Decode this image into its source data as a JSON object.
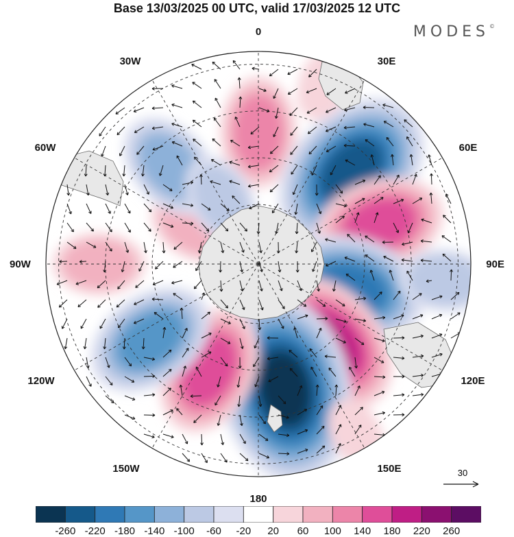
{
  "title": "Base 13/03/2025 00 UTC, valid 17/03/2025 12 UTC",
  "brand": "MODES",
  "brand_mark": "©",
  "longitude_labels": {
    "n0": "0",
    "n30e": "30E",
    "n60e": "60E",
    "n90e": "90E",
    "n120e": "120E",
    "n150e": "150E",
    "n180": "180",
    "n150w": "150W",
    "n120w": "120W",
    "n90w": "90W",
    "n60w": "60W",
    "n30w": "30W"
  },
  "vector_scale": {
    "label": "30"
  },
  "colorbar": {
    "labels": [
      "-260",
      "-220",
      "-180",
      "-140",
      "-100",
      "-60",
      "-20",
      "20",
      "60",
      "100",
      "140",
      "180",
      "220",
      "260"
    ],
    "colors": [
      "#0b3452",
      "#15598a",
      "#2f79b5",
      "#5596c8",
      "#8db1d9",
      "#bcc9e4",
      "#dcdff0",
      "#ffffff",
      "#f7d5db",
      "#f2b1c0",
      "#ec85a9",
      "#df4e99",
      "#bf1e85",
      "#8b1070",
      "#5c0d63"
    ]
  },
  "map_colors": {
    "land": "#e8e8e8",
    "ocean": "#ffffff"
  },
  "anomalies": [
    {
      "lon": 0,
      "rho": 0.62,
      "value": 120
    },
    {
      "lon": 45,
      "rho": 0.62,
      "value": -230
    },
    {
      "lon": 72,
      "rho": 0.6,
      "value": 140
    },
    {
      "lon": 105,
      "rho": 0.45,
      "value": -200
    },
    {
      "lon": 138,
      "rho": 0.5,
      "value": 190
    },
    {
      "lon": 168,
      "rho": 0.6,
      "value": -260
    },
    {
      "lon": 205,
      "rho": 0.55,
      "value": 170
    },
    {
      "lon": 235,
      "rho": 0.62,
      "value": -160
    },
    {
      "lon": 300,
      "rho": 0.35,
      "value": 60
    },
    {
      "lon": 318,
      "rho": 0.62,
      "value": -110
    },
    {
      "lon": 330,
      "rho": 0.35,
      "value": -60
    },
    {
      "lon": 270,
      "rho": 0.75,
      "value": 60
    },
    {
      "lon": 20,
      "rho": 0.9,
      "value": 40
    },
    {
      "lon": 95,
      "rho": 0.88,
      "value": -60
    },
    {
      "lon": 150,
      "rho": 0.92,
      "value": 50
    }
  ]
}
